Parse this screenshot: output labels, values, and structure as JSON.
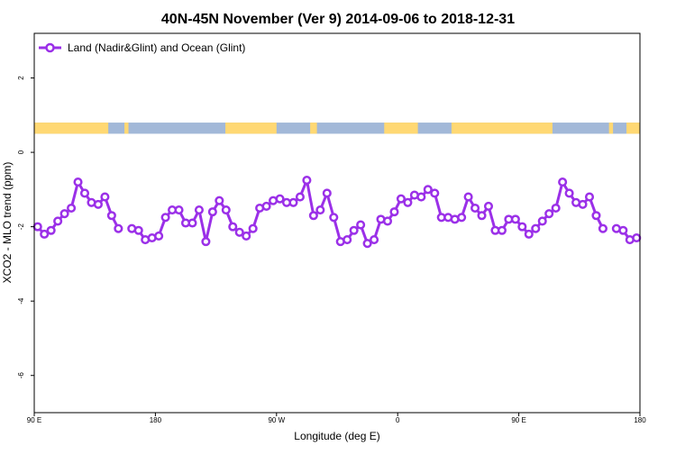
{
  "chart_data": {
    "type": "line",
    "title": "40N-45N November (Ver 9)   2014-09-06 to 2018-12-31",
    "xlabel": "Longitude (deg E)",
    "ylabel": "XCO2 - MLO trend (ppm)",
    "x_axis_longitude_range": [
      90,
      450
    ],
    "ylim": [
      -7,
      3.2
    ],
    "x_ticks": [
      {
        "value": 90,
        "label": "90 E"
      },
      {
        "value": 180,
        "label": "180"
      },
      {
        "value": 270,
        "label": "90 W"
      },
      {
        "value": 360,
        "label": "0"
      },
      {
        "value": 450,
        "label": "90 E"
      },
      {
        "value": 540,
        "label": "180"
      }
    ],
    "y_ticks": [
      {
        "value": 2,
        "label": "2"
      },
      {
        "value": 0,
        "label": "0"
      },
      {
        "value": -2,
        "label": "-2"
      },
      {
        "value": -4,
        "label": "-4"
      },
      {
        "value": -6,
        "label": "-6"
      }
    ],
    "grid": false,
    "legend_position": "top-left",
    "colors": {
      "series": "#9b30e8",
      "land": "#ffd873",
      "ocean": "#a2b8d8"
    },
    "land_ocean_band": {
      "y_top": 0.8,
      "y_bottom": 0.5,
      "land_longitude_ranges": [
        [
          90,
          145
        ],
        [
          157,
          160
        ],
        [
          232,
          270
        ],
        [
          295,
          300
        ],
        [
          350,
          375
        ],
        [
          400,
          475
        ],
        [
          517,
          520
        ],
        [
          530,
          540
        ]
      ]
    },
    "series": [
      {
        "name": "Land (Nadir&Glint) and Ocean (Glint)",
        "points": [
          {
            "x": 92.5,
            "y": -2.0
          },
          {
            "x": 97.5,
            "y": -2.2
          },
          {
            "x": 102.5,
            "y": -2.1
          },
          {
            "x": 107.5,
            "y": -1.85
          },
          {
            "x": 112.5,
            "y": -1.65
          },
          {
            "x": 117.5,
            "y": -1.5
          },
          {
            "x": 122.5,
            "y": -0.8
          },
          {
            "x": 127.5,
            "y": -1.1
          },
          {
            "x": 132.5,
            "y": -1.35
          },
          {
            "x": 137.5,
            "y": -1.4
          },
          {
            "x": 142.5,
            "y": -1.2
          },
          {
            "x": 147.5,
            "y": -1.7
          },
          {
            "x": 152.5,
            "y": -2.05
          },
          {
            "x": 162.5,
            "y": -2.05
          },
          {
            "x": 167.5,
            "y": -2.1
          },
          {
            "x": 172.5,
            "y": -2.35
          },
          {
            "x": 177.5,
            "y": -2.3
          },
          {
            "x": 182.5,
            "y": -2.25
          },
          {
            "x": 187.5,
            "y": -1.75
          },
          {
            "x": 192.5,
            "y": -1.55
          },
          {
            "x": 197.5,
            "y": -1.55
          },
          {
            "x": 202.5,
            "y": -1.9
          },
          {
            "x": 207.5,
            "y": -1.9
          },
          {
            "x": 212.5,
            "y": -1.55
          },
          {
            "x": 217.5,
            "y": -2.4
          },
          {
            "x": 222.5,
            "y": -1.6
          },
          {
            "x": 227.5,
            "y": -1.3
          },
          {
            "x": 232.5,
            "y": -1.55
          },
          {
            "x": 237.5,
            "y": -2.0
          },
          {
            "x": 242.5,
            "y": -2.15
          },
          {
            "x": 247.5,
            "y": -2.25
          },
          {
            "x": 252.5,
            "y": -2.05
          },
          {
            "x": 257.5,
            "y": -1.5
          },
          {
            "x": 262.5,
            "y": -1.45
          },
          {
            "x": 267.5,
            "y": -1.3
          },
          {
            "x": 272.5,
            "y": -1.25
          },
          {
            "x": 277.5,
            "y": -1.35
          },
          {
            "x": 282.5,
            "y": -1.35
          },
          {
            "x": 287.5,
            "y": -1.2
          },
          {
            "x": 292.5,
            "y": -0.75
          },
          {
            "x": 297.5,
            "y": -1.7
          },
          {
            "x": 302.5,
            "y": -1.55
          },
          {
            "x": 307.5,
            "y": -1.1
          },
          {
            "x": 312.5,
            "y": -1.75
          },
          {
            "x": 317.5,
            "y": -2.4
          },
          {
            "x": 322.5,
            "y": -2.35
          },
          {
            "x": 327.5,
            "y": -2.1
          },
          {
            "x": 332.5,
            "y": -1.95
          },
          {
            "x": 337.5,
            "y": -2.45
          },
          {
            "x": 342.5,
            "y": -2.35
          },
          {
            "x": 347.5,
            "y": -1.8
          },
          {
            "x": 352.5,
            "y": -1.85
          },
          {
            "x": 357.5,
            "y": -1.6
          },
          {
            "x": 362.5,
            "y": -1.25
          },
          {
            "x": 367.5,
            "y": -1.35
          },
          {
            "x": 372.5,
            "y": -1.15
          },
          {
            "x": 377.5,
            "y": -1.2
          },
          {
            "x": 382.5,
            "y": -1.0
          },
          {
            "x": 387.5,
            "y": -1.1
          },
          {
            "x": 392.5,
            "y": -1.75
          },
          {
            "x": 397.5,
            "y": -1.75
          },
          {
            "x": 402.5,
            "y": -1.8
          },
          {
            "x": 407.5,
            "y": -1.75
          },
          {
            "x": 412.5,
            "y": -1.2
          },
          {
            "x": 417.5,
            "y": -1.5
          },
          {
            "x": 422.5,
            "y": -1.7
          },
          {
            "x": 427.5,
            "y": -1.45
          },
          {
            "x": 432.5,
            "y": -2.1
          },
          {
            "x": 437.5,
            "y": -2.1
          },
          {
            "x": 442.5,
            "y": -1.8
          },
          {
            "x": 447.5,
            "y": -1.8
          },
          {
            "x": 452.5,
            "y": -2.0
          },
          {
            "x": 457.5,
            "y": -2.2
          },
          {
            "x": 462.5,
            "y": -2.05
          },
          {
            "x": 467.5,
            "y": -1.85
          },
          {
            "x": 472.5,
            "y": -1.65
          },
          {
            "x": 477.5,
            "y": -1.5
          },
          {
            "x": 482.5,
            "y": -0.8
          },
          {
            "x": 487.5,
            "y": -1.1
          },
          {
            "x": 492.5,
            "y": -1.35
          },
          {
            "x": 497.5,
            "y": -1.4
          },
          {
            "x": 502.5,
            "y": -1.2
          },
          {
            "x": 507.5,
            "y": -1.7
          },
          {
            "x": 512.5,
            "y": -2.05
          },
          {
            "x": 522.5,
            "y": -2.05
          },
          {
            "x": 527.5,
            "y": -2.1
          },
          {
            "x": 532.5,
            "y": -2.35
          },
          {
            "x": 537.5,
            "y": -2.3
          }
        ]
      }
    ]
  }
}
